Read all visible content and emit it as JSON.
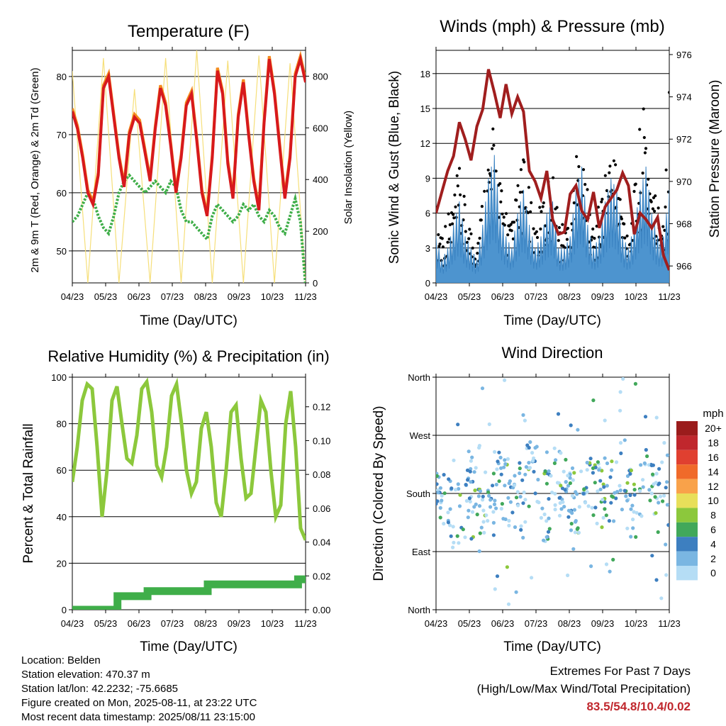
{
  "chart_data": [
    {
      "type": "line",
      "title": "Temperature (F)",
      "xlabel": "Time (Day/UTC)",
      "ylabel": "2m & 9m T (Red, Orange) & 2m Td (Green)",
      "y2label": "Solar Insolation (Yellow)",
      "x_ticks": [
        "04/23",
        "05/23",
        "06/23",
        "07/23",
        "08/23",
        "09/23",
        "10/23",
        "11/23"
      ],
      "ylim": [
        44.5,
        84.5
      ],
      "y_ticks": [
        50,
        60,
        70,
        80
      ],
      "y2lim": [
        0,
        900
      ],
      "y2_ticks": [
        0,
        200,
        400,
        600,
        800
      ],
      "grid": true,
      "colors": {
        "t2m": "#d7191c",
        "t9m": "#f48c1e",
        "td": "#3fae49",
        "solar": "#f6df7a"
      },
      "series": [
        {
          "key": "t2m",
          "values": [
            74,
            71,
            66,
            60,
            58,
            63,
            78,
            80,
            73,
            66,
            61,
            70,
            73,
            72,
            67,
            62,
            71,
            78,
            75,
            68,
            60,
            66,
            75,
            77,
            69,
            60,
            56,
            66,
            81,
            77,
            65,
            59,
            73,
            79,
            70,
            62,
            57,
            72,
            83,
            77,
            68,
            59,
            66,
            80,
            83,
            79
          ]
        },
        {
          "key": "t9m",
          "values": [
            74.5,
            71.5,
            66.5,
            60.5,
            58.5,
            63.5,
            78.5,
            80.5,
            73.5,
            66.5,
            61.5,
            70.5,
            73.5,
            72.5,
            67.5,
            62.5,
            71.5,
            78.5,
            75.5,
            68.5,
            60.5,
            66.5,
            75.5,
            77.5,
            69.5,
            60.5,
            56.5,
            66.5,
            81.5,
            77.5,
            65.5,
            59.5,
            73.5,
            79.5,
            70.5,
            62.5,
            57.5,
            72.5,
            83.5,
            77.5,
            68.5,
            59.5,
            66.5,
            80.5,
            83.5,
            79.5
          ]
        },
        {
          "key": "td",
          "values": [
            55,
            56,
            58,
            60,
            59,
            56,
            54,
            53,
            56,
            60,
            62,
            63,
            62,
            61,
            60,
            61,
            62,
            61,
            60,
            62,
            61,
            57,
            55,
            55,
            54,
            53,
            52,
            56,
            58,
            57,
            56,
            55,
            56,
            58,
            57,
            58,
            56,
            55,
            57,
            56,
            54,
            53,
            56,
            59,
            55,
            44
          ]
        },
        {
          "key": "solar",
          "values": [
            820,
            0,
            870,
            0,
            750,
            0,
            870,
            0,
            900,
            0,
            860,
            0,
            880,
            0,
            850,
            0
          ]
        }
      ]
    },
    {
      "type": "scatter",
      "title": "Winds (mph) & Pressure (mb)",
      "xlabel": "Time (Day/UTC)",
      "ylabel": "Sonic Wind & Gust (Blue, Black)",
      "y2label": "Station Pressure (Maroon)",
      "x_ticks": [
        "04/23",
        "05/23",
        "06/23",
        "07/23",
        "08/23",
        "09/23",
        "10/23",
        "11/23"
      ],
      "ylim": [
        0,
        20
      ],
      "y_ticks": [
        0,
        3,
        6,
        9,
        12,
        15,
        18
      ],
      "y2lim": [
        965.2,
        976.2
      ],
      "y2_ticks": [
        966,
        968,
        970,
        972,
        974,
        976
      ],
      "grid": true,
      "colors": {
        "wind": "#4d94cf",
        "gust": "#000000",
        "pressure": "#a01e1e"
      },
      "series": [
        {
          "key": "wind_envelope",
          "values": [
            4,
            2,
            3,
            5,
            7,
            4,
            3,
            2,
            5,
            9,
            11,
            6,
            4,
            3,
            6,
            8,
            5,
            3,
            4,
            6,
            7,
            3,
            3,
            4,
            8,
            10,
            5,
            3,
            4,
            7,
            9,
            8,
            4,
            3,
            5,
            8,
            10,
            6,
            4,
            4,
            8
          ]
        },
        {
          "key": "gust_envelope",
          "values": [
            7,
            5,
            6,
            8,
            10,
            7,
            5,
            4,
            8,
            12,
            14,
            9,
            7,
            5,
            9,
            11,
            8,
            5,
            7,
            9,
            10,
            6,
            5,
            7,
            11,
            12,
            8,
            5,
            7,
            10,
            13,
            11,
            7,
            5,
            8,
            14,
            16,
            10,
            7,
            8,
            18
          ]
        },
        {
          "key": "pressure",
          "values": [
            968.5,
            969.5,
            970.5,
            971.2,
            972.8,
            972.0,
            971.0,
            972.6,
            973.4,
            975.3,
            974.2,
            973.0,
            974.6,
            973.2,
            974.0,
            973.3,
            970.5,
            970.0,
            969.2,
            970.5,
            968.2,
            967.5,
            967.6,
            969.4,
            969.8,
            968.6,
            968.2,
            969.5,
            967.8,
            968.8,
            969.2,
            969.6,
            970.4,
            969.8,
            967.5,
            968.5,
            968.2,
            967.8,
            968.3,
            966.5,
            965.8
          ]
        }
      ]
    },
    {
      "type": "line",
      "title": "Relative Humidity (%) & Precipitation (in)",
      "xlabel": "Time (Day/UTC)",
      "ylabel": "Percent & Total Rainfall",
      "x_ticks": [
        "04/23",
        "05/23",
        "06/23",
        "07/23",
        "08/23",
        "09/23",
        "10/23",
        "11/23"
      ],
      "ylim": [
        0,
        100
      ],
      "y_ticks": [
        0,
        20,
        40,
        60,
        80,
        100
      ],
      "y2lim": [
        0,
        0.1375
      ],
      "y2_ticks": [
        "0.00",
        "0.02",
        "0.04",
        "0.06",
        "0.08",
        "0.10",
        "0.12"
      ],
      "grid": true,
      "colors": {
        "rh": "#8cc83c",
        "precip": "#3fae49"
      },
      "series": [
        {
          "key": "rh",
          "values": [
            55,
            70,
            90,
            97,
            95,
            70,
            40,
            60,
            90,
            96,
            80,
            65,
            63,
            75,
            95,
            98,
            85,
            62,
            57,
            70,
            92,
            97,
            80,
            60,
            50,
            55,
            78,
            85,
            70,
            46,
            40,
            60,
            85,
            88,
            65,
            48,
            50,
            70,
            90,
            85,
            60,
            40,
            45,
            80,
            94,
            70,
            35,
            30
          ]
        },
        {
          "key": "precip",
          "values": [
            0.0,
            0.0,
            0.0,
            0.0,
            0.0,
            0.0,
            0.008,
            0.008,
            0.008,
            0.008,
            0.011,
            0.011,
            0.011,
            0.011,
            0.011,
            0.011,
            0.011,
            0.011,
            0.015,
            0.015,
            0.015,
            0.015,
            0.015,
            0.015,
            0.015,
            0.015,
            0.015,
            0.015,
            0.015,
            0.015,
            0.018,
            0.018
          ]
        }
      ]
    },
    {
      "type": "scatter",
      "title": "Wind Direction",
      "xlabel": "Time (Day/UTC)",
      "ylabel": "Direction (Colored By Speed)",
      "x_ticks": [
        "04/23",
        "05/23",
        "06/23",
        "07/23",
        "08/23",
        "09/23",
        "10/23",
        "11/23"
      ],
      "y_ticks": [
        "North",
        "East",
        "South",
        "West",
        "North"
      ],
      "ylim": [
        0,
        360
      ],
      "grid": true,
      "legend": {
        "title": "mph",
        "labels": [
          "20+",
          "18",
          "16",
          "14",
          "12",
          "10",
          "8",
          "6",
          "4",
          "2",
          "0"
        ],
        "colors": [
          "#9b1c1c",
          "#c0272d",
          "#e04030",
          "#f06a2a",
          "#f9a24a",
          "#e8df5a",
          "#8cc83c",
          "#41a85a",
          "#3d7fc0",
          "#7ab6e2",
          "#b5ddf5"
        ]
      },
      "series": [
        {
          "key": "direction_clusters",
          "values": [
            180,
            150,
            200,
            165,
            190,
            175,
            205,
            160,
            195,
            170,
            185,
            180,
            210,
            165,
            200,
            175
          ]
        }
      ]
    }
  ],
  "footer": {
    "location": "Location: Belden",
    "elevation": "Station elevation: 470.37 m",
    "latlon": "Station lat/lon: 42.2232; -75.6685",
    "created": "Figure created on Mon, 2025-08-11, at 23:22 UTC",
    "recent": "Most recent data timestamp: 2025/08/11 23:15:00",
    "extremes_title": "Extremes For Past 7 Days",
    "extremes_sub": "(High/Low/Max Wind/Total Precipitation)",
    "extremes_values": "83.5/54.8/10.4/0.02"
  }
}
